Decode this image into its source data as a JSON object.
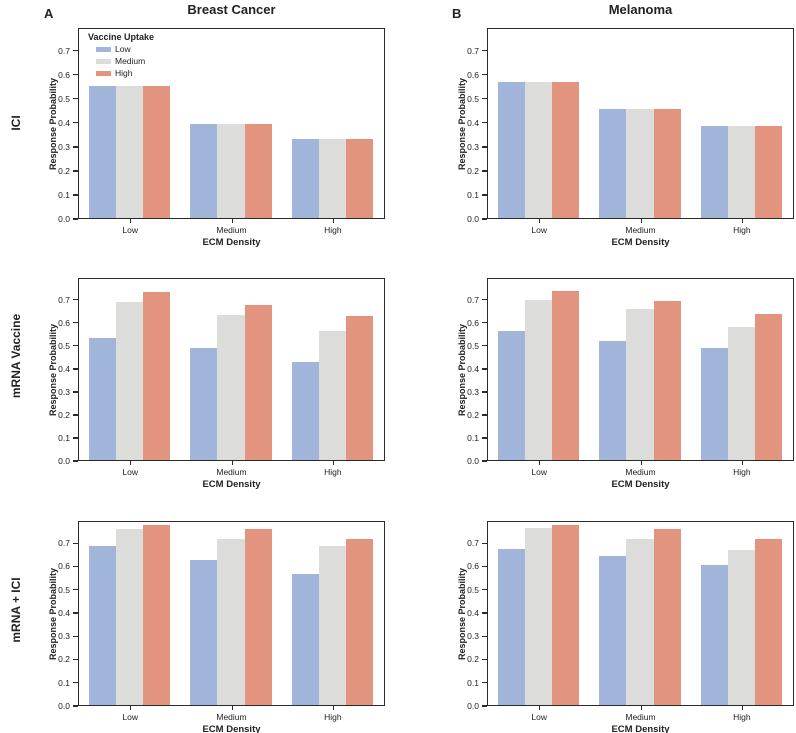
{
  "figure": {
    "panel_letters": [
      "A",
      "B"
    ],
    "column_titles": [
      "Breast Cancer",
      "Melanoma"
    ],
    "row_labels": [
      "ICI",
      "mRNA Vaccine",
      "mRNA + ICI"
    ],
    "legend": {
      "title": "Vaccine Uptake",
      "entries": [
        {
          "label": "Low",
          "color": "#a1b4da"
        },
        {
          "label": "Medium",
          "color": "#dcdcda"
        },
        {
          "label": "High",
          "color": "#e2947e"
        }
      ]
    },
    "colors": {
      "axis": "#2b2b2b",
      "text": "#222222",
      "background": "#ffffff"
    }
  },
  "chart_data": [
    {
      "type": "bar",
      "panel": "A",
      "row": "ICI",
      "column_title": "Breast Cancer",
      "categories": [
        "Low",
        "Medium",
        "High"
      ],
      "series": [
        {
          "name": "Low",
          "color": "#a1b4da",
          "values": [
            0.55,
            0.39,
            0.33
          ]
        },
        {
          "name": "Medium",
          "color": "#dcdcda",
          "values": [
            0.55,
            0.39,
            0.33
          ]
        },
        {
          "name": "High",
          "color": "#e2947e",
          "values": [
            0.55,
            0.39,
            0.33
          ]
        }
      ],
      "xlabel": "ECM Density",
      "ylabel": "Response Probability",
      "ylim": [
        0,
        0.795
      ],
      "yticks": [
        "0.0",
        "0.1",
        "0.2",
        "0.3",
        "0.4",
        "0.5",
        "0.6",
        "0.7"
      ],
      "grid": false,
      "legend_position": "upper-left",
      "legend_visible": true
    },
    {
      "type": "bar",
      "panel": "B",
      "row": "ICI",
      "column_title": "Melanoma",
      "categories": [
        "Low",
        "Medium",
        "High"
      ],
      "series": [
        {
          "name": "Low",
          "color": "#a1b4da",
          "values": [
            0.565,
            0.455,
            0.385
          ]
        },
        {
          "name": "Medium",
          "color": "#dcdcda",
          "values": [
            0.565,
            0.455,
            0.385
          ]
        },
        {
          "name": "High",
          "color": "#e2947e",
          "values": [
            0.565,
            0.455,
            0.385
          ]
        }
      ],
      "xlabel": "ECM Density",
      "ylabel": "Response Probability",
      "ylim": [
        0,
        0.795
      ],
      "yticks": [
        "0.0",
        "0.1",
        "0.2",
        "0.3",
        "0.4",
        "0.5",
        "0.6",
        "0.7"
      ],
      "grid": false,
      "legend_visible": false
    },
    {
      "type": "bar",
      "panel": "A",
      "row": "mRNA Vaccine",
      "column_title": "Breast Cancer",
      "categories": [
        "Low",
        "Medium",
        "High"
      ],
      "series": [
        {
          "name": "Low",
          "color": "#a1b4da",
          "values": [
            0.53,
            0.485,
            0.425
          ]
        },
        {
          "name": "Medium",
          "color": "#dcdcda",
          "values": [
            0.685,
            0.63,
            0.56
          ]
        },
        {
          "name": "High",
          "color": "#e2947e",
          "values": [
            0.73,
            0.675,
            0.625
          ]
        }
      ],
      "xlabel": "ECM Density",
      "ylabel": "Response Probability",
      "ylim": [
        0,
        0.795
      ],
      "yticks": [
        "0.0",
        "0.1",
        "0.2",
        "0.3",
        "0.4",
        "0.5",
        "0.6",
        "0.7"
      ],
      "grid": false,
      "legend_visible": false
    },
    {
      "type": "bar",
      "panel": "B",
      "row": "mRNA Vaccine",
      "column_title": "Melanoma",
      "categories": [
        "Low",
        "Medium",
        "High"
      ],
      "series": [
        {
          "name": "Low",
          "color": "#a1b4da",
          "values": [
            0.56,
            0.515,
            0.485
          ]
        },
        {
          "name": "Medium",
          "color": "#dcdcda",
          "values": [
            0.695,
            0.655,
            0.58
          ]
        },
        {
          "name": "High",
          "color": "#e2947e",
          "values": [
            0.735,
            0.69,
            0.635
          ]
        }
      ],
      "xlabel": "ECM Density",
      "ylabel": "Response Probability",
      "ylim": [
        0,
        0.795
      ],
      "yticks": [
        "0.0",
        "0.1",
        "0.2",
        "0.3",
        "0.4",
        "0.5",
        "0.6",
        "0.7"
      ],
      "grid": false,
      "legend_visible": false
    },
    {
      "type": "bar",
      "panel": "A",
      "row": "mRNA + ICI",
      "column_title": "Breast Cancer",
      "categories": [
        "Low",
        "Medium",
        "High"
      ],
      "series": [
        {
          "name": "Low",
          "color": "#a1b4da",
          "values": [
            0.685,
            0.625,
            0.565
          ]
        },
        {
          "name": "Medium",
          "color": "#dcdcda",
          "values": [
            0.755,
            0.715,
            0.685
          ]
        },
        {
          "name": "High",
          "color": "#e2947e",
          "values": [
            0.775,
            0.755,
            0.715
          ]
        }
      ],
      "xlabel": "ECM Density",
      "ylabel": "Response Probability",
      "ylim": [
        0,
        0.795
      ],
      "yticks": [
        "0.0",
        "0.1",
        "0.2",
        "0.3",
        "0.4",
        "0.5",
        "0.6",
        "0.7"
      ],
      "grid": false,
      "legend_visible": false
    },
    {
      "type": "bar",
      "panel": "B",
      "row": "mRNA + ICI",
      "column_title": "Melanoma",
      "categories": [
        "Low",
        "Medium",
        "High"
      ],
      "series": [
        {
          "name": "Low",
          "color": "#a1b4da",
          "values": [
            0.67,
            0.64,
            0.6
          ]
        },
        {
          "name": "Medium",
          "color": "#dcdcda",
          "values": [
            0.76,
            0.715,
            0.665
          ]
        },
        {
          "name": "High",
          "color": "#e2947e",
          "values": [
            0.775,
            0.755,
            0.715
          ]
        }
      ],
      "xlabel": "ECM Density",
      "ylabel": "Response Probability",
      "ylim": [
        0,
        0.795
      ],
      "yticks": [
        "0.0",
        "0.1",
        "0.2",
        "0.3",
        "0.4",
        "0.5",
        "0.6",
        "0.7"
      ],
      "grid": false,
      "legend_visible": false
    }
  ]
}
